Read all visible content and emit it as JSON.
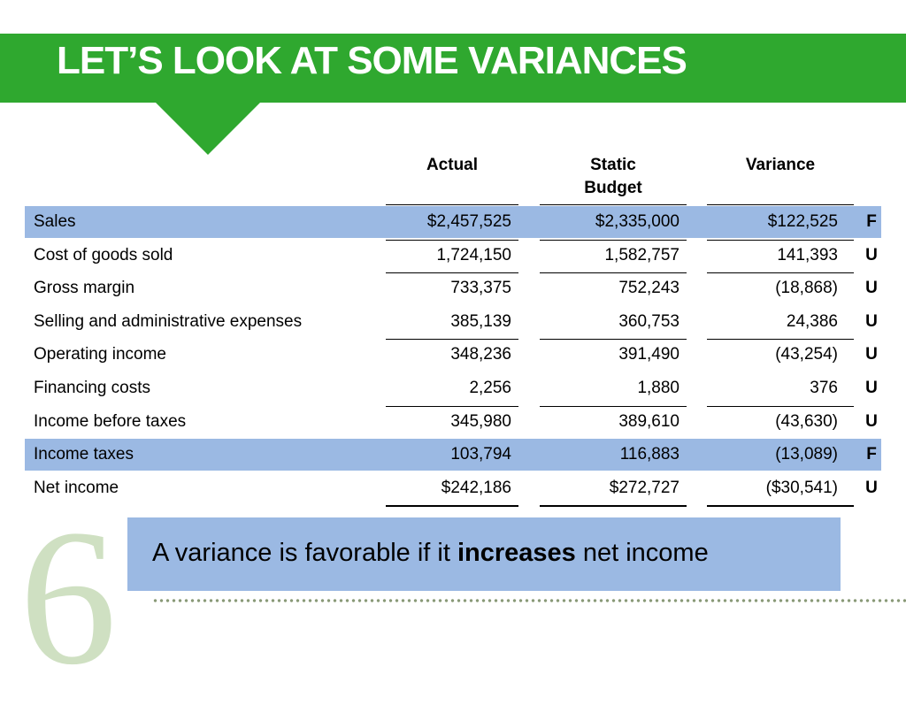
{
  "title": "LET’S LOOK AT SOME VARIANCES",
  "columns": {
    "actual": "Actual",
    "budget_line1": "Static",
    "budget_line2": "Budget",
    "variance": "Variance"
  },
  "rows": [
    {
      "label": "Sales",
      "actual": "$2,457,525",
      "budget": "$2,335,000",
      "variance": "$122,525",
      "fu": "F",
      "highlight": true
    },
    {
      "label": "Cost of goods sold",
      "actual": "1,724,150",
      "budget": "1,582,757",
      "variance": "141,393",
      "fu": "U",
      "highlight": false
    },
    {
      "label": "Gross margin",
      "actual": "733,375",
      "budget": "752,243",
      "variance": "(18,868)",
      "fu": "U",
      "highlight": false
    },
    {
      "label": "Selling and administrative expenses",
      "actual": "385,139",
      "budget": "360,753",
      "variance": "24,386",
      "fu": "U",
      "highlight": false
    },
    {
      "label": "Operating income",
      "actual": "348,236",
      "budget": "391,490",
      "variance": "(43,254)",
      "fu": "U",
      "highlight": false
    },
    {
      "label": "Financing costs",
      "actual": "2,256",
      "budget": "1,880",
      "variance": "376",
      "fu": "U",
      "highlight": false
    },
    {
      "label": "Income before taxes",
      "actual": "345,980",
      "budget": "389,610",
      "variance": "(43,630)",
      "fu": "U",
      "highlight": false
    },
    {
      "label": "Income taxes",
      "actual": "103,794",
      "budget": "116,883",
      "variance": "(13,089)",
      "fu": "F",
      "highlight": true
    },
    {
      "label": "Net income",
      "actual": "$242,186",
      "budget": "$272,727",
      "variance": "($30,541)",
      "fu": "U",
      "highlight": false
    }
  ],
  "callout": {
    "before": "A variance is favorable if it ",
    "bold": "increases",
    "after": " net income"
  },
  "chapter_number": "6",
  "colors": {
    "banner": "#2fa82f",
    "highlight_row": "#9bb9e3",
    "callout_bg": "#9bb9e3",
    "chapter_number": "#cfe0c2"
  }
}
